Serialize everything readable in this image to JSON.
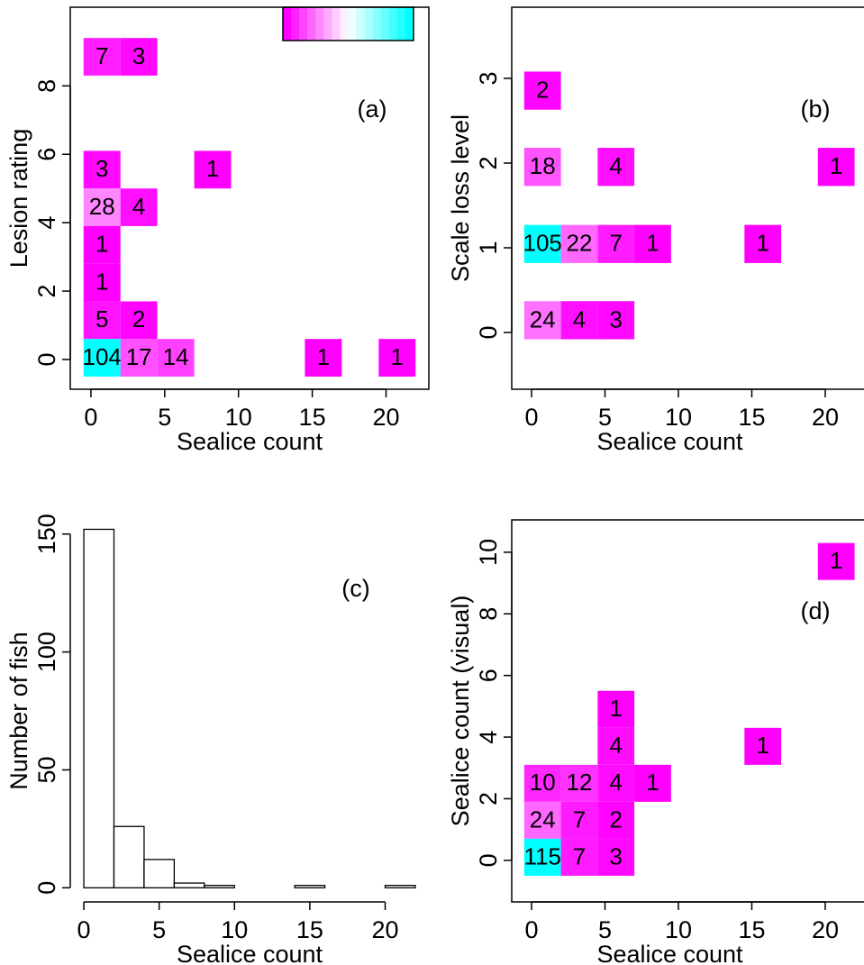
{
  "chart_data": [
    {
      "type": "heatmap",
      "x_label": "Sealice count",
      "y_label": "Lesion rating",
      "annotation": "(a)",
      "xlim": [
        -1.4,
        22.9
      ],
      "ylim": [
        -0.87,
        10.3
      ],
      "xticks": [
        0,
        5,
        10,
        15,
        20
      ],
      "yticks": [
        0,
        2,
        4,
        6,
        8
      ],
      "colors": [
        "#FF00FF",
        "#FFFFFF",
        "#00FFFF"
      ],
      "colorbar": true,
      "box": true,
      "cells": [
        {
          "x": [
            -0.5,
            2
          ],
          "y": [
            8.3,
            9.4
          ],
          "count": 7
        },
        {
          "x": [
            2,
            4.5
          ],
          "y": [
            8.3,
            9.4
          ],
          "count": 3
        },
        {
          "x": [
            -0.5,
            2
          ],
          "y": [
            5.0,
            6.1
          ],
          "count": 3
        },
        {
          "x": [
            7,
            9.5
          ],
          "y": [
            5.0,
            6.1
          ],
          "count": 1
        },
        {
          "x": [
            -0.5,
            2
          ],
          "y": [
            3.9,
            5.0
          ],
          "count": 28
        },
        {
          "x": [
            2,
            4.5
          ],
          "y": [
            3.9,
            5.0
          ],
          "count": 4
        },
        {
          "x": [
            -0.5,
            2
          ],
          "y": [
            2.8,
            3.9
          ],
          "count": 1
        },
        {
          "x": [
            -0.5,
            2
          ],
          "y": [
            1.7,
            2.8
          ],
          "count": 1
        },
        {
          "x": [
            -0.5,
            2
          ],
          "y": [
            0.6,
            1.7
          ],
          "count": 5
        },
        {
          "x": [
            2,
            4.5
          ],
          "y": [
            0.6,
            1.7
          ],
          "count": 2
        },
        {
          "x": [
            -0.5,
            2
          ],
          "y": [
            -0.5,
            0.6
          ],
          "count": 104
        },
        {
          "x": [
            2,
            4.5
          ],
          "y": [
            -0.5,
            0.6
          ],
          "count": 17
        },
        {
          "x": [
            4.5,
            7
          ],
          "y": [
            -0.5,
            0.6
          ],
          "count": 14
        },
        {
          "x": [
            14.5,
            17
          ],
          "y": [
            -0.5,
            0.6
          ],
          "count": 1
        },
        {
          "x": [
            19.5,
            22
          ],
          "y": [
            -0.5,
            0.6
          ],
          "count": 1
        }
      ]
    },
    {
      "type": "heatmap",
      "x_label": "Sealice count",
      "y_label": "Scale loss level",
      "annotation": "(b)",
      "xlim": [
        -1.35,
        23.07
      ],
      "ylim": [
        -0.67,
        3.84
      ],
      "xticks": [
        0,
        5,
        10,
        15,
        20
      ],
      "yticks": [
        0,
        1,
        2,
        3
      ],
      "colors": [
        "#FF00FF",
        "#FFFFFF",
        "#00FFFF"
      ],
      "box": true,
      "cells": [
        {
          "x": [
            -0.5,
            2
          ],
          "y": [
            2.63,
            3.08
          ],
          "count": 2
        },
        {
          "x": [
            -0.5,
            2
          ],
          "y": [
            1.73,
            2.18
          ],
          "count": 18
        },
        {
          "x": [
            4.5,
            7
          ],
          "y": [
            1.73,
            2.18
          ],
          "count": 4
        },
        {
          "x": [
            19.5,
            22
          ],
          "y": [
            1.73,
            2.18
          ],
          "count": 1
        },
        {
          "x": [
            -0.5,
            2
          ],
          "y": [
            0.82,
            1.27
          ],
          "count": 105
        },
        {
          "x": [
            2,
            4.5
          ],
          "y": [
            0.82,
            1.27
          ],
          "count": 22
        },
        {
          "x": [
            4.5,
            7
          ],
          "y": [
            0.82,
            1.27
          ],
          "count": 7
        },
        {
          "x": [
            7,
            9.5
          ],
          "y": [
            0.82,
            1.27
          ],
          "count": 1
        },
        {
          "x": [
            14.5,
            17
          ],
          "y": [
            0.82,
            1.27
          ],
          "count": 1
        },
        {
          "x": [
            -0.5,
            2
          ],
          "y": [
            -0.08,
            0.37
          ],
          "count": 24
        },
        {
          "x": [
            2,
            4.5
          ],
          "y": [
            -0.08,
            0.37
          ],
          "count": 4
        },
        {
          "x": [
            4.5,
            7
          ],
          "y": [
            -0.08,
            0.37
          ],
          "count": 3
        }
      ]
    },
    {
      "type": "histogram",
      "x_label": "Sealice count",
      "y_label": "Number of fish",
      "annotation": "(c)",
      "xlim": [
        -0.9,
        22.9
      ],
      "ylim": [
        -6,
        156
      ],
      "xticks": [
        0,
        5,
        10,
        15,
        20
      ],
      "yticks": [
        0,
        50,
        100,
        150
      ],
      "color": "#FFFFFF",
      "bins": [
        0,
        2,
        4,
        6,
        8,
        10,
        12,
        14,
        16,
        18,
        20,
        22
      ],
      "counts": [
        152,
        26,
        12,
        2,
        1,
        0,
        0,
        1,
        0,
        0,
        1
      ]
    },
    {
      "type": "heatmap",
      "x_label": "Sealice count",
      "y_label": "Sealice count (visual)",
      "annotation": "(d)",
      "xlim": [
        -1.35,
        23.07
      ],
      "ylim": [
        -1.35,
        11.05
      ],
      "xticks": [
        0,
        5,
        10,
        15,
        20
      ],
      "yticks": [
        0,
        2,
        4,
        6,
        8,
        10
      ],
      "colors": [
        "#FF00FF",
        "#FFFFFF",
        "#00FFFF"
      ],
      "box": true,
      "cells": [
        {
          "x": [
            19.5,
            22
          ],
          "y": [
            9.1,
            10.3
          ],
          "count": 1
        },
        {
          "x": [
            4.5,
            7
          ],
          "y": [
            4.3,
            5.5
          ],
          "count": 1
        },
        {
          "x": [
            4.5,
            7
          ],
          "y": [
            3.1,
            4.3
          ],
          "count": 4
        },
        {
          "x": [
            14.5,
            17
          ],
          "y": [
            3.1,
            4.3
          ],
          "count": 1
        },
        {
          "x": [
            -0.5,
            2
          ],
          "y": [
            1.9,
            3.1
          ],
          "count": 10
        },
        {
          "x": [
            2,
            4.5
          ],
          "y": [
            1.9,
            3.1
          ],
          "count": 12
        },
        {
          "x": [
            4.5,
            7
          ],
          "y": [
            1.9,
            3.1
          ],
          "count": 4
        },
        {
          "x": [
            7,
            9.5
          ],
          "y": [
            1.9,
            3.1
          ],
          "count": 1
        },
        {
          "x": [
            -0.5,
            2
          ],
          "y": [
            0.7,
            1.9
          ],
          "count": 24
        },
        {
          "x": [
            2,
            4.5
          ],
          "y": [
            0.7,
            1.9
          ],
          "count": 7
        },
        {
          "x": [
            4.5,
            7
          ],
          "y": [
            0.7,
            1.9
          ],
          "count": 2
        },
        {
          "x": [
            -0.5,
            2
          ],
          "y": [
            -0.5,
            0.7
          ],
          "count": 115
        },
        {
          "x": [
            2,
            4.5
          ],
          "y": [
            -0.5,
            0.7
          ],
          "count": 7
        },
        {
          "x": [
            4.5,
            7
          ],
          "y": [
            -0.5,
            0.7
          ],
          "count": 3
        }
      ]
    }
  ]
}
